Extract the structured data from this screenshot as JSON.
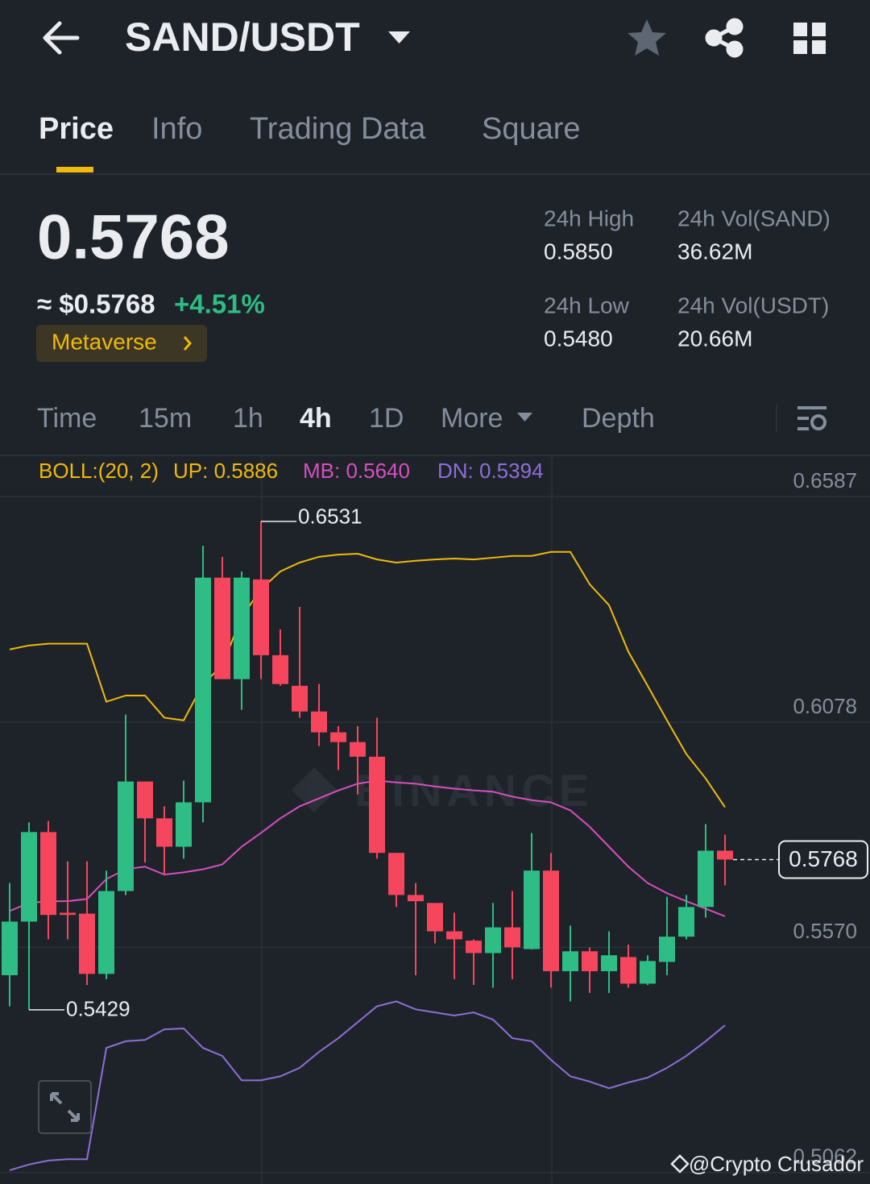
{
  "header": {
    "pair": "SAND/USDT"
  },
  "tabs": [
    "Price",
    "Info",
    "Trading Data",
    "Square"
  ],
  "price": {
    "last": "0.5768",
    "fiat": "≈ $0.5768",
    "change": "+4.51%",
    "sector": "Metaverse"
  },
  "stats": [
    {
      "label": "24h High",
      "value": "0.5850"
    },
    {
      "label": "24h Vol(SAND)",
      "value": "36.62M"
    },
    {
      "label": "24h Low",
      "value": "0.5480"
    },
    {
      "label": "24h Vol(USDT)",
      "value": "20.66M"
    }
  ],
  "intervals": [
    "Time",
    "15m",
    "1h",
    "4h",
    "1D",
    "More",
    "Depth"
  ],
  "chart_data": {
    "type": "candlestick",
    "indicator": "BOLL:(20, 2)",
    "open": [
      0.5507,
      0.5628,
      0.583,
      0.5648,
      0.5646,
      0.551,
      0.5697,
      0.5944,
      0.5861,
      0.5797,
      0.5897,
      0.6404,
      0.6175,
      0.64,
      0.6229,
      0.616,
      0.6102,
      0.6055,
      0.6033,
      0.6,
      0.5783,
      0.5688,
      0.567,
      0.5606,
      0.5585,
      0.5557,
      0.5615,
      0.5566,
      0.5743,
      0.5516,
      0.5561,
      0.5516,
      0.5548,
      0.5488,
      0.5537,
      0.5594,
      0.5661,
      0.5788
    ],
    "high": [
      0.5715,
      0.5852,
      0.5855,
      0.5764,
      0.5764,
      0.5743,
      0.6095,
      0.5944,
      0.5888,
      0.5946,
      0.6476,
      0.6451,
      0.6418,
      0.6531,
      0.6287,
      0.6338,
      0.6164,
      0.6069,
      0.6069,
      0.6088,
      0.5783,
      0.5715,
      0.567,
      0.5648,
      0.5588,
      0.567,
      0.5697,
      0.5828,
      0.5783,
      0.5619,
      0.557,
      0.5606,
      0.5576,
      0.5552,
      0.5684,
      0.5688,
      0.5848,
      0.5824
    ],
    "low": [
      0.5437,
      0.5429,
      0.5588,
      0.5588,
      0.5485,
      0.5498,
      0.5688,
      0.5761,
      0.5734,
      0.577,
      0.5852,
      0.6175,
      0.6106,
      0.6175,
      0.616,
      0.6088,
      0.6024,
      0.597,
      0.5915,
      0.577,
      0.5661,
      0.5507,
      0.5579,
      0.5498,
      0.5485,
      0.5479,
      0.5498,
      0.5565,
      0.5479,
      0.5448,
      0.5467,
      0.5467,
      0.5479,
      0.5485,
      0.5507,
      0.5588,
      0.5637,
      0.571
    ],
    "close": [
      0.5628,
      0.583,
      0.5643,
      0.5643,
      0.551,
      0.5697,
      0.5944,
      0.5861,
      0.5797,
      0.5897,
      0.6404,
      0.6175,
      0.6404,
      0.6229,
      0.6164,
      0.6102,
      0.6055,
      0.6033,
      0.6,
      0.5783,
      0.5688,
      0.5674,
      0.5606,
      0.5588,
      0.5557,
      0.5615,
      0.557,
      0.5743,
      0.5516,
      0.5561,
      0.5516,
      0.5552,
      0.5488,
      0.5539,
      0.5594,
      0.5661,
      0.5788,
      0.5768
    ],
    "up_color": "#2ebd85",
    "down_color": "#f6465d",
    "series": [
      {
        "name": "UP: 0.5886",
        "color": "#f0b90b",
        "values": [
          0.6242,
          0.6251,
          0.6255,
          0.6255,
          0.6255,
          0.6124,
          0.6138,
          0.6138,
          0.6088,
          0.6082,
          0.6164,
          0.6206,
          0.6315,
          0.6378,
          0.6418,
          0.6438,
          0.6451,
          0.6456,
          0.6458,
          0.6445,
          0.6438,
          0.6442,
          0.6445,
          0.6447,
          0.6445,
          0.6449,
          0.6453,
          0.6453,
          0.6462,
          0.6462,
          0.6389,
          0.6342,
          0.6237,
          0.616,
          0.6082,
          0.6006,
          0.5951,
          0.5886
        ]
      },
      {
        "name": "MB: 0.5640",
        "color": "#d64fc0",
        "values": [
          0.5652,
          0.567,
          0.5674,
          0.5674,
          0.5679,
          0.5724,
          0.5746,
          0.5752,
          0.5734,
          0.5739,
          0.5746,
          0.5757,
          0.5797,
          0.5828,
          0.5861,
          0.5888,
          0.5906,
          0.5924,
          0.5939,
          0.5946,
          0.5942,
          0.5939,
          0.5933,
          0.5928,
          0.5924,
          0.5921,
          0.591,
          0.5902,
          0.5897,
          0.5879,
          0.5842,
          0.5797,
          0.5752,
          0.5715,
          0.5692,
          0.5674,
          0.5657,
          0.564
        ]
      },
      {
        "name": "DN: 0.5394",
        "color": "#8e6ed8",
        "values": [
          0.5067,
          0.508,
          0.5089,
          0.5092,
          0.5092,
          0.5343,
          0.5358,
          0.5361,
          0.5385,
          0.5387,
          0.5343,
          0.5325,
          0.527,
          0.527,
          0.5279,
          0.5298,
          0.5334,
          0.5365,
          0.5401,
          0.5437,
          0.5448,
          0.543,
          0.5423,
          0.5416,
          0.5423,
          0.5407,
          0.5365,
          0.5358,
          0.5316,
          0.5279,
          0.5267,
          0.5252,
          0.5265,
          0.5276,
          0.5298,
          0.5325,
          0.5358,
          0.5394
        ]
      }
    ],
    "high_label": 0.6531,
    "low_label": 0.5429,
    "last_price": 0.5768,
    "ylim": [
      0.5036,
      0.6678
    ],
    "yticks": [
      0.6587,
      0.6078,
      {
        "value": 0.557,
        "label": "0.5570"
      },
      0.5062
    ],
    "grid": true
  },
  "watermark": "BINANCE",
  "credit": "@Crypto Crusador"
}
